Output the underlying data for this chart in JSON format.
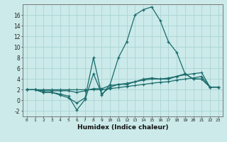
{
  "xlabel": "Humidex (Indice chaleur)",
  "background_color": "#cceaea",
  "grid_color": "#aad4d4",
  "line_color": "#1a6b6b",
  "x_ticks": [
    0,
    1,
    2,
    3,
    4,
    5,
    6,
    7,
    8,
    9,
    10,
    11,
    12,
    13,
    14,
    15,
    16,
    17,
    18,
    19,
    20,
    21,
    22,
    23
  ],
  "ylim": [
    -3,
    18
  ],
  "xlim": [
    -0.5,
    23.5
  ],
  "line1_y": [
    2,
    2,
    1.5,
    1.5,
    1,
    0.5,
    -0.5,
    0.5,
    8,
    1,
    3,
    8,
    11,
    16,
    17,
    17.5,
    15,
    11,
    9,
    5,
    4,
    4,
    2.5,
    2.5
  ],
  "line2_y": [
    2,
    2,
    1.5,
    1.5,
    1.2,
    0.8,
    -1.8,
    0.2,
    5,
    1.2,
    2.5,
    3,
    3,
    3.5,
    4,
    4.2,
    4,
    4,
    4.5,
    5,
    4,
    4,
    2.5,
    2.5
  ],
  "line3_y": [
    2,
    2,
    1.8,
    1.8,
    1.8,
    1.8,
    1.5,
    1.8,
    2.2,
    2.2,
    2.8,
    3.0,
    3.2,
    3.5,
    3.8,
    4.0,
    4.0,
    4.2,
    4.5,
    4.8,
    5.0,
    5.2,
    2.5,
    2.5
  ],
  "line4_y": [
    2,
    2,
    2,
    2,
    2,
    2,
    2,
    2,
    2.0,
    2.0,
    2.2,
    2.4,
    2.6,
    2.8,
    3.0,
    3.2,
    3.4,
    3.5,
    3.8,
    4.0,
    4.2,
    4.5,
    2.5,
    2.5
  ],
  "yticks": [
    -2,
    0,
    2,
    4,
    6,
    8,
    10,
    12,
    14,
    16
  ],
  "ytick_labels": [
    "-2",
    "0",
    "2",
    "4",
    "6",
    "8",
    "10",
    "12",
    "14",
    "16"
  ]
}
